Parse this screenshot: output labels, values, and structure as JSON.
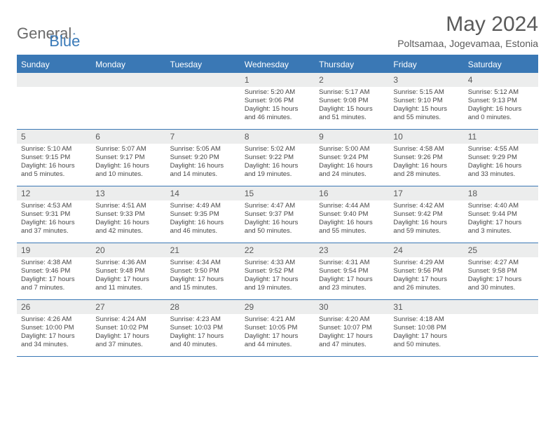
{
  "logo": {
    "text1": "General",
    "text2": "Blue"
  },
  "title": "May 2024",
  "location": "Poltsamaa, Jogevamaa, Estonia",
  "colors": {
    "header_bg": "#3a78b5",
    "header_text": "#ffffff",
    "daynum_bg": "#eceded",
    "text": "#474747",
    "logo_gray": "#6a6a6a",
    "logo_blue": "#3a7ab8"
  },
  "day_names": [
    "Sunday",
    "Monday",
    "Tuesday",
    "Wednesday",
    "Thursday",
    "Friday",
    "Saturday"
  ],
  "weeks": [
    [
      {
        "n": "",
        "sr": "",
        "ss": "",
        "dl": ""
      },
      {
        "n": "",
        "sr": "",
        "ss": "",
        "dl": ""
      },
      {
        "n": "",
        "sr": "",
        "ss": "",
        "dl": ""
      },
      {
        "n": "1",
        "sr": "Sunrise: 5:20 AM",
        "ss": "Sunset: 9:06 PM",
        "dl": "Daylight: 15 hours and 46 minutes."
      },
      {
        "n": "2",
        "sr": "Sunrise: 5:17 AM",
        "ss": "Sunset: 9:08 PM",
        "dl": "Daylight: 15 hours and 51 minutes."
      },
      {
        "n": "3",
        "sr": "Sunrise: 5:15 AM",
        "ss": "Sunset: 9:10 PM",
        "dl": "Daylight: 15 hours and 55 minutes."
      },
      {
        "n": "4",
        "sr": "Sunrise: 5:12 AM",
        "ss": "Sunset: 9:13 PM",
        "dl": "Daylight: 16 hours and 0 minutes."
      }
    ],
    [
      {
        "n": "5",
        "sr": "Sunrise: 5:10 AM",
        "ss": "Sunset: 9:15 PM",
        "dl": "Daylight: 16 hours and 5 minutes."
      },
      {
        "n": "6",
        "sr": "Sunrise: 5:07 AM",
        "ss": "Sunset: 9:17 PM",
        "dl": "Daylight: 16 hours and 10 minutes."
      },
      {
        "n": "7",
        "sr": "Sunrise: 5:05 AM",
        "ss": "Sunset: 9:20 PM",
        "dl": "Daylight: 16 hours and 14 minutes."
      },
      {
        "n": "8",
        "sr": "Sunrise: 5:02 AM",
        "ss": "Sunset: 9:22 PM",
        "dl": "Daylight: 16 hours and 19 minutes."
      },
      {
        "n": "9",
        "sr": "Sunrise: 5:00 AM",
        "ss": "Sunset: 9:24 PM",
        "dl": "Daylight: 16 hours and 24 minutes."
      },
      {
        "n": "10",
        "sr": "Sunrise: 4:58 AM",
        "ss": "Sunset: 9:26 PM",
        "dl": "Daylight: 16 hours and 28 minutes."
      },
      {
        "n": "11",
        "sr": "Sunrise: 4:55 AM",
        "ss": "Sunset: 9:29 PM",
        "dl": "Daylight: 16 hours and 33 minutes."
      }
    ],
    [
      {
        "n": "12",
        "sr": "Sunrise: 4:53 AM",
        "ss": "Sunset: 9:31 PM",
        "dl": "Daylight: 16 hours and 37 minutes."
      },
      {
        "n": "13",
        "sr": "Sunrise: 4:51 AM",
        "ss": "Sunset: 9:33 PM",
        "dl": "Daylight: 16 hours and 42 minutes."
      },
      {
        "n": "14",
        "sr": "Sunrise: 4:49 AM",
        "ss": "Sunset: 9:35 PM",
        "dl": "Daylight: 16 hours and 46 minutes."
      },
      {
        "n": "15",
        "sr": "Sunrise: 4:47 AM",
        "ss": "Sunset: 9:37 PM",
        "dl": "Daylight: 16 hours and 50 minutes."
      },
      {
        "n": "16",
        "sr": "Sunrise: 4:44 AM",
        "ss": "Sunset: 9:40 PM",
        "dl": "Daylight: 16 hours and 55 minutes."
      },
      {
        "n": "17",
        "sr": "Sunrise: 4:42 AM",
        "ss": "Sunset: 9:42 PM",
        "dl": "Daylight: 16 hours and 59 minutes."
      },
      {
        "n": "18",
        "sr": "Sunrise: 4:40 AM",
        "ss": "Sunset: 9:44 PM",
        "dl": "Daylight: 17 hours and 3 minutes."
      }
    ],
    [
      {
        "n": "19",
        "sr": "Sunrise: 4:38 AM",
        "ss": "Sunset: 9:46 PM",
        "dl": "Daylight: 17 hours and 7 minutes."
      },
      {
        "n": "20",
        "sr": "Sunrise: 4:36 AM",
        "ss": "Sunset: 9:48 PM",
        "dl": "Daylight: 17 hours and 11 minutes."
      },
      {
        "n": "21",
        "sr": "Sunrise: 4:34 AM",
        "ss": "Sunset: 9:50 PM",
        "dl": "Daylight: 17 hours and 15 minutes."
      },
      {
        "n": "22",
        "sr": "Sunrise: 4:33 AM",
        "ss": "Sunset: 9:52 PM",
        "dl": "Daylight: 17 hours and 19 minutes."
      },
      {
        "n": "23",
        "sr": "Sunrise: 4:31 AM",
        "ss": "Sunset: 9:54 PM",
        "dl": "Daylight: 17 hours and 23 minutes."
      },
      {
        "n": "24",
        "sr": "Sunrise: 4:29 AM",
        "ss": "Sunset: 9:56 PM",
        "dl": "Daylight: 17 hours and 26 minutes."
      },
      {
        "n": "25",
        "sr": "Sunrise: 4:27 AM",
        "ss": "Sunset: 9:58 PM",
        "dl": "Daylight: 17 hours and 30 minutes."
      }
    ],
    [
      {
        "n": "26",
        "sr": "Sunrise: 4:26 AM",
        "ss": "Sunset: 10:00 PM",
        "dl": "Daylight: 17 hours and 34 minutes."
      },
      {
        "n": "27",
        "sr": "Sunrise: 4:24 AM",
        "ss": "Sunset: 10:02 PM",
        "dl": "Daylight: 17 hours and 37 minutes."
      },
      {
        "n": "28",
        "sr": "Sunrise: 4:23 AM",
        "ss": "Sunset: 10:03 PM",
        "dl": "Daylight: 17 hours and 40 minutes."
      },
      {
        "n": "29",
        "sr": "Sunrise: 4:21 AM",
        "ss": "Sunset: 10:05 PM",
        "dl": "Daylight: 17 hours and 44 minutes."
      },
      {
        "n": "30",
        "sr": "Sunrise: 4:20 AM",
        "ss": "Sunset: 10:07 PM",
        "dl": "Daylight: 17 hours and 47 minutes."
      },
      {
        "n": "31",
        "sr": "Sunrise: 4:18 AM",
        "ss": "Sunset: 10:08 PM",
        "dl": "Daylight: 17 hours and 50 minutes."
      },
      {
        "n": "",
        "sr": "",
        "ss": "",
        "dl": ""
      }
    ]
  ]
}
